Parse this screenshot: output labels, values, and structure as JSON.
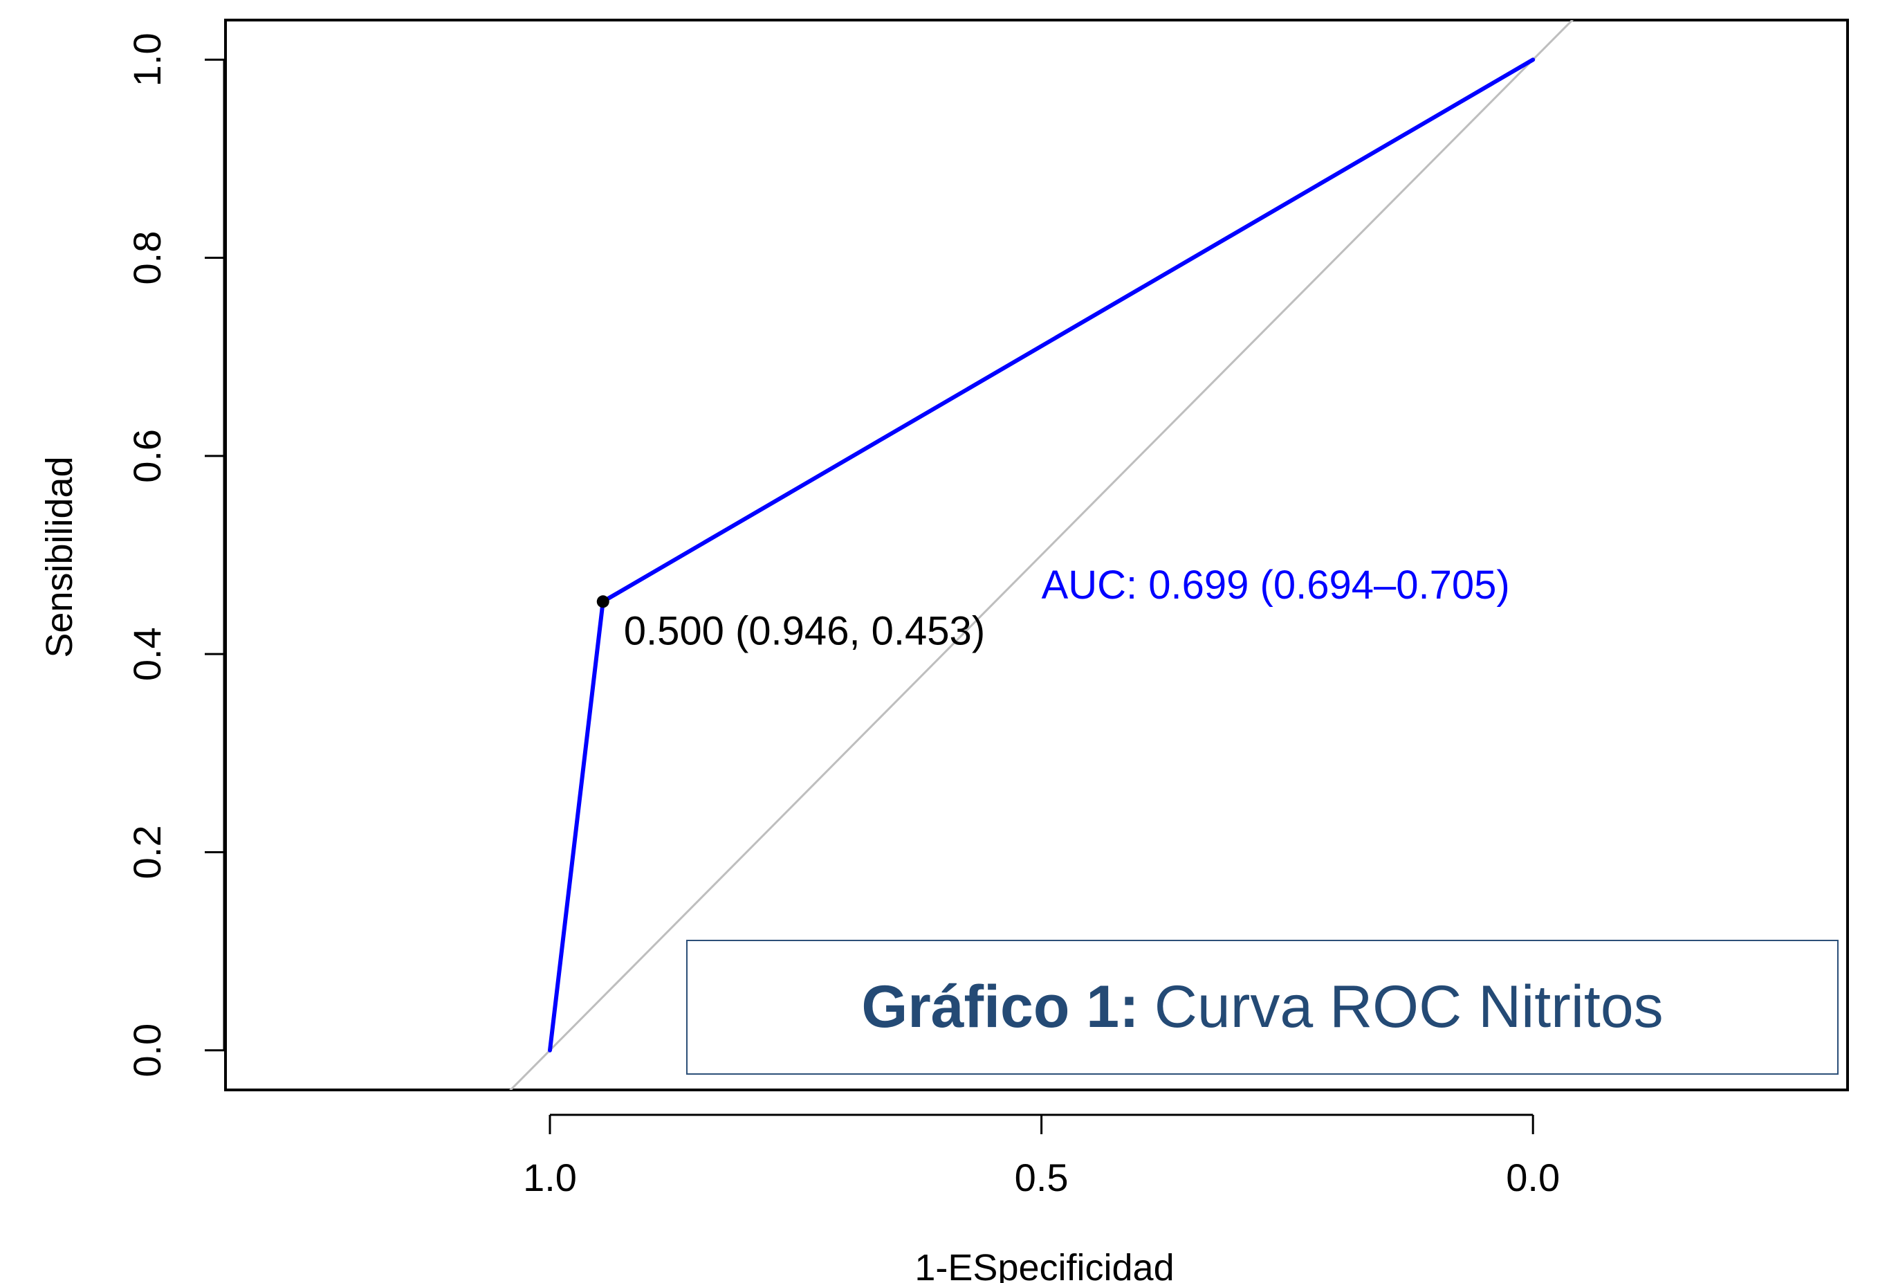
{
  "chart_data": {
    "type": "line",
    "xlabel": "1-ESpecificidad",
    "ylabel": "Sensibilidad",
    "x_axis_reversed": true,
    "xlim": [
      1.33,
      -0.32
    ],
    "ylim": [
      -0.04,
      1.04
    ],
    "x_ticks": [
      "1.0",
      "0.5",
      "0.0"
    ],
    "x_tick_values": [
      1.0,
      0.5,
      0.0
    ],
    "y_ticks": [
      "0.0",
      "0.2",
      "0.4",
      "0.6",
      "0.8",
      "1.0"
    ],
    "y_tick_values": [
      0.0,
      0.2,
      0.4,
      0.6,
      0.8,
      1.0
    ],
    "series": [
      {
        "color": "#0000ff",
        "x": [
          1.0,
          0.946,
          0.0
        ],
        "y": [
          0.0,
          0.453,
          1.0
        ]
      }
    ],
    "reference_line": {
      "color": "#bebebe",
      "from": [
        1.0,
        0.0
      ],
      "to": [
        0.0,
        1.0
      ]
    },
    "highlight_point": {
      "x": 0.946,
      "y": 0.453,
      "label": "0.500 (0.946, 0.453)"
    },
    "annotation": {
      "text": "AUC: 0.699 (0.694–0.705)",
      "x": 0.5,
      "y": 0.47,
      "color": "#0000ff"
    },
    "grid": false
  },
  "caption": {
    "bold": "Gráfico 1:",
    "rest": "Curva ROC Nitritos",
    "color": "#244a75"
  }
}
